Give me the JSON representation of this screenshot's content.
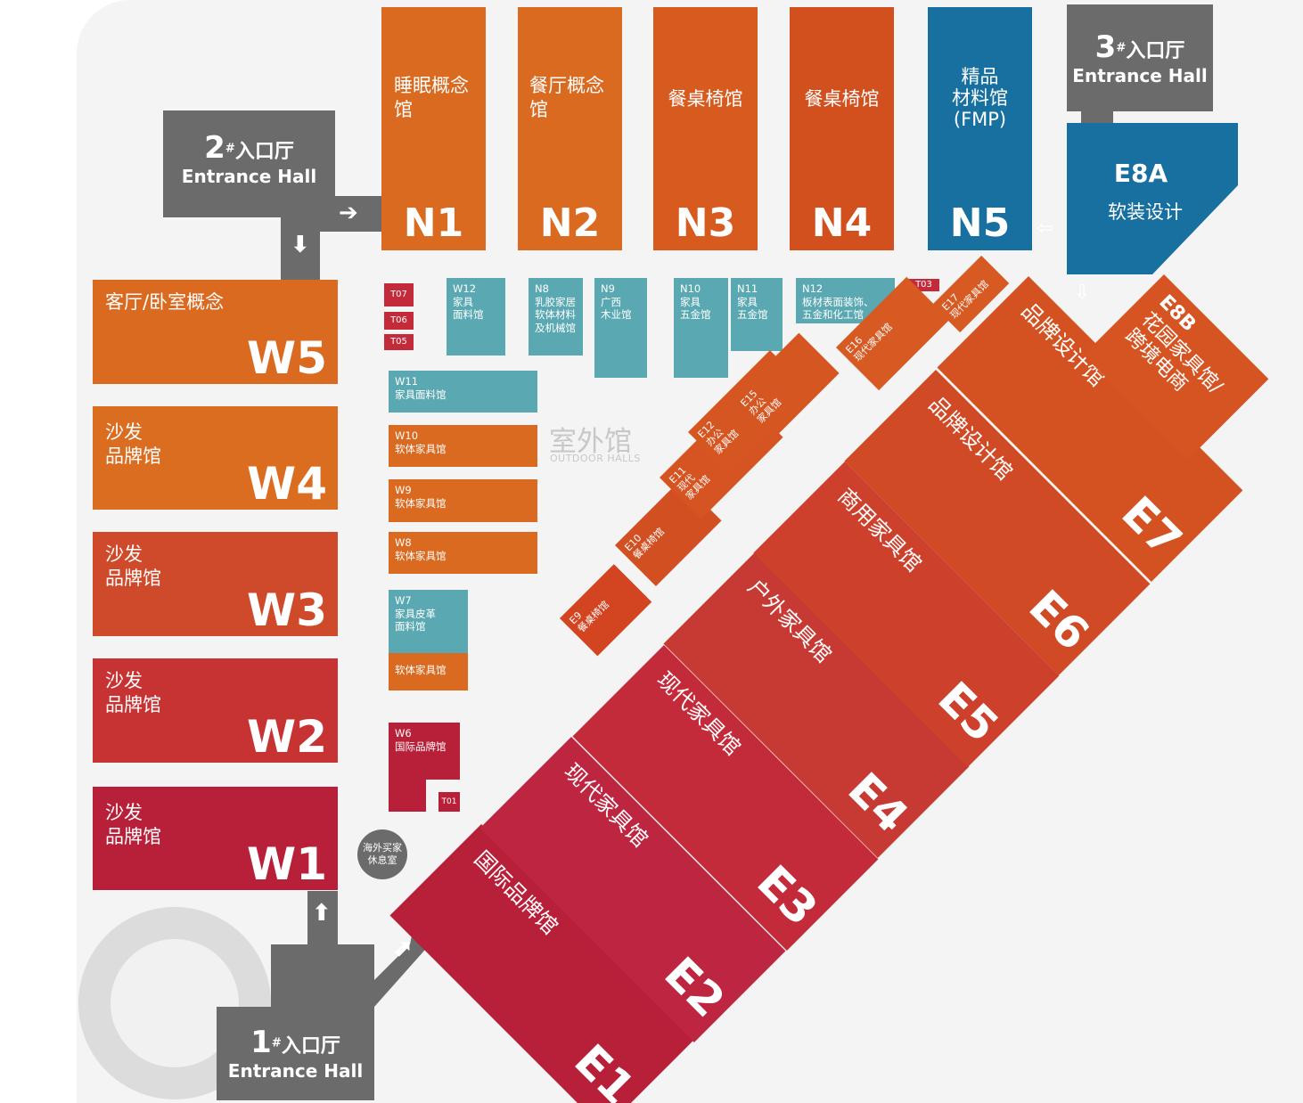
{
  "entrances": {
    "e1": {
      "num": "1",
      "sup": "#",
      "cn": "入口厅",
      "en": "Entrance Hall"
    },
    "e2": {
      "num": "2",
      "sup": "#",
      "cn": "入口厅",
      "en": "Entrance Hall"
    },
    "e3": {
      "num": "3",
      "sup": "#",
      "cn": "入口厅",
      "en": "Entrance Hall"
    }
  },
  "north": [
    {
      "code": "N1",
      "name": "睡眠概念\n馆"
    },
    {
      "code": "N2",
      "name": "餐厅概念\n馆"
    },
    {
      "code": "N3",
      "name": "餐桌椅馆"
    },
    {
      "code": "N4",
      "name": "餐桌椅馆"
    },
    {
      "code": "N5",
      "name": "精品\n材料馆\n(FMP)"
    }
  ],
  "e8a": {
    "code": "E8A",
    "name": "软装设计"
  },
  "e8b": {
    "code": "E8B",
    "name": "花园家具馆/\n跨境电商"
  },
  "west": [
    {
      "code": "W5",
      "name": "客厅/卧室概念"
    },
    {
      "code": "W4",
      "name": "沙发\n品牌馆"
    },
    {
      "code": "W3",
      "name": "沙发\n品牌馆"
    },
    {
      "code": "W2",
      "name": "沙发\n品牌馆"
    },
    {
      "code": "W1",
      "name": "沙发\n品牌馆"
    }
  ],
  "outdoor": {
    "title": "室外馆",
    "subtitle": "OUTDOOR HALLS",
    "halls": {
      "W12": "W12\n家具\n面料馆",
      "N8": "N8\n乳胶家居\n软体材料\n及机械馆",
      "N9": "N9\n广西\n木业馆",
      "N10": "N10\n家具\n五金馆",
      "N11": "N11\n家具\n五金馆",
      "N12": "N12\n板材表面装饰、\n五金和化工馆",
      "W11": "W11\n家具面料馆",
      "W10": "W10\n软体家具馆",
      "W9": "W9\n软体家具馆",
      "W8": "W8\n软体家具馆",
      "W7": "W7\n家具皮革\n面料馆",
      "W7b": "软体家具馆",
      "W6": "W6\n国际品牌馆"
    },
    "tags": {
      "T07": "T07",
      "T06": "T06",
      "T05": "T05",
      "T03": "T03",
      "T01": "T01"
    }
  },
  "east": [
    {
      "code": "E1",
      "name": "国际品牌馆"
    },
    {
      "code": "E2",
      "name": "现代家具馆"
    },
    {
      "code": "E3",
      "name": "现代家具馆"
    },
    {
      "code": "E4",
      "name": "户外家具馆"
    },
    {
      "code": "E5",
      "name": "商用家具馆"
    },
    {
      "code": "E6",
      "name": "品牌设计馆"
    },
    {
      "code": "E7",
      "name": "品牌设计馆"
    }
  ],
  "small_east": [
    {
      "code": "E9",
      "name": "餐桌椅馆"
    },
    {
      "code": "E10",
      "name": "餐桌椅馆"
    },
    {
      "code": "E11",
      "name": "现代\n家具馆"
    },
    {
      "code": "E12",
      "name": "办公\n家具馆"
    },
    {
      "code": "E15",
      "name": "办公\n家具馆"
    },
    {
      "code": "E16",
      "name": "现代家具馆"
    },
    {
      "code": "E17",
      "name": "现代家具馆"
    }
  ],
  "lounge": "海外买家\n休息室",
  "colors": {
    "orange": "#d96a20",
    "teal": "#5aa8b2",
    "crimson": "#c42b3a",
    "gray": "#6b6b6b",
    "blue": "#1870a0"
  }
}
